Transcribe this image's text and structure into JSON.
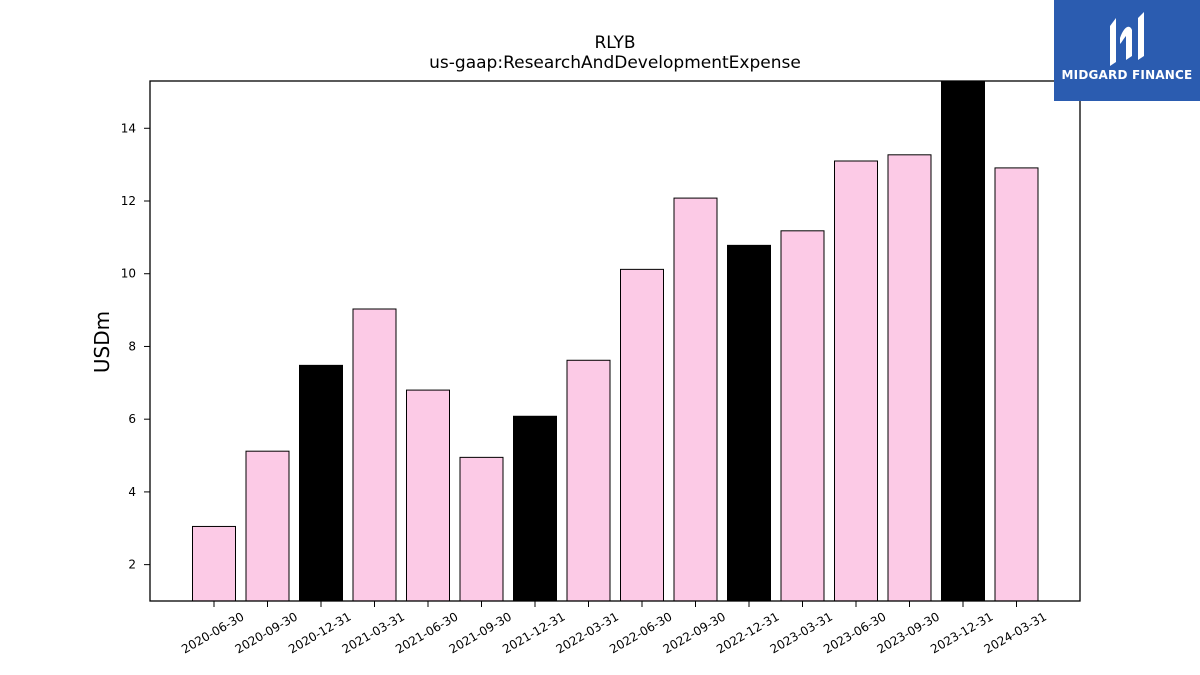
{
  "brand": {
    "name": "MIDGARD FINANCE",
    "bg_color": "#2b5cb0"
  },
  "chart_data": {
    "type": "bar",
    "title": "RLYB",
    "subtitle": "us-gaap:ResearchAndDevelopmentExpense",
    "xlabel": "",
    "ylabel": "USDm",
    "ylim": [
      1.0,
      15.3
    ],
    "yticks": [
      2,
      4,
      6,
      8,
      10,
      12,
      14
    ],
    "grid": false,
    "categories": [
      "2020-06-30",
      "2020-09-30",
      "2020-12-31",
      "2021-03-31",
      "2021-06-30",
      "2021-09-30",
      "2021-12-31",
      "2022-03-31",
      "2022-06-30",
      "2022-09-30",
      "2022-12-31",
      "2023-03-31",
      "2023-06-30",
      "2023-09-30",
      "2023-12-31",
      "2024-03-31"
    ],
    "values": [
      3.05,
      5.12,
      7.48,
      9.03,
      6.8,
      4.95,
      6.08,
      7.62,
      10.12,
      12.08,
      10.78,
      11.18,
      13.1,
      13.27,
      15.3,
      12.91
    ],
    "bar_colors": [
      "#fccae6",
      "#fccae6",
      "#000000",
      "#fccae6",
      "#fccae6",
      "#fccae6",
      "#000000",
      "#fccae6",
      "#fccae6",
      "#fccae6",
      "#000000",
      "#fccae6",
      "#fccae6",
      "#fccae6",
      "#000000",
      "#fccae6"
    ],
    "edge_color": "#000000"
  }
}
